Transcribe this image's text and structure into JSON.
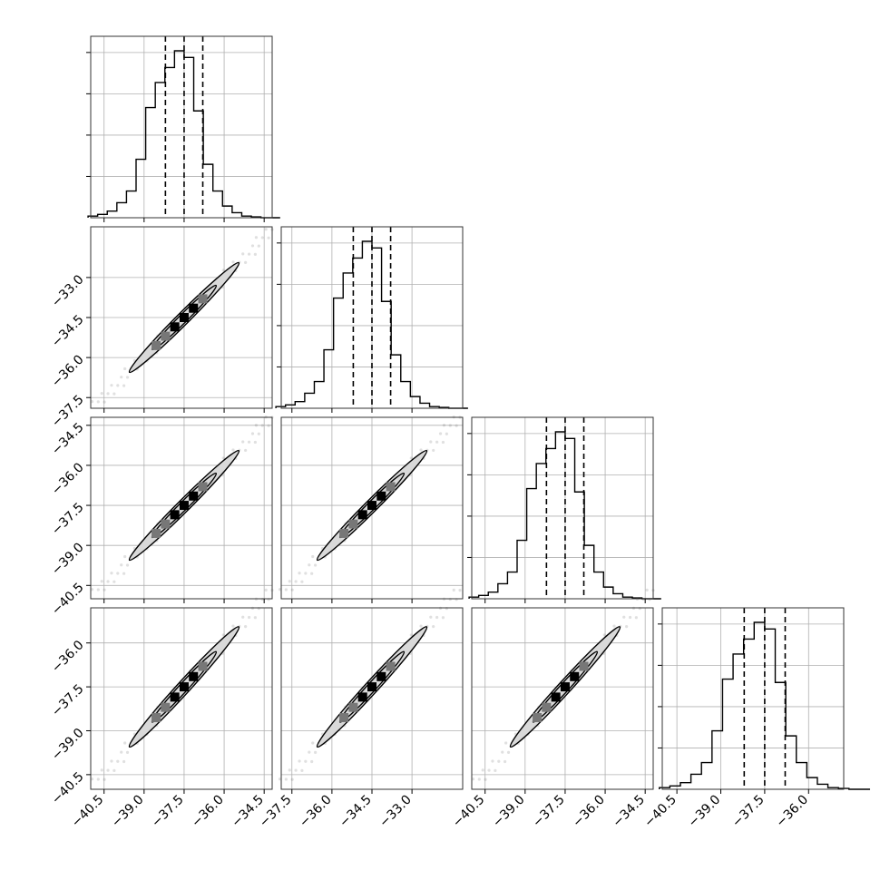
{
  "chart_data": {
    "type": "corner",
    "dimensions": 4,
    "params": [
      {
        "index": 0,
        "range": [
          -41.0,
          -34.2
        ],
        "ticks": [
          -40.5,
          -39.0,
          -37.5,
          -36.0,
          -34.5
        ],
        "tick_labels": [
          "−40.5",
          "−39.0",
          "−37.5",
          "−36.0",
          "−34.5"
        ],
        "median": -37.5,
        "q16": -38.2,
        "q84": -36.8,
        "hist_peak": 1.0
      },
      {
        "index": 1,
        "range": [
          -37.9,
          -31.1
        ],
        "ticks": [
          -37.5,
          -36.0,
          -34.5,
          -33.0
        ],
        "tick_labels": [
          "−37.5",
          "−36.0",
          "−34.5",
          "−33.0"
        ],
        "median": -34.5,
        "q16": -35.2,
        "q84": -33.8,
        "hist_peak": 1.0
      },
      {
        "index": 2,
        "range": [
          -41.0,
          -34.2
        ],
        "ticks": [
          -40.5,
          -39.0,
          -37.5,
          -36.0,
          -34.5
        ],
        "tick_labels": [
          "−40.5",
          "−39.0",
          "−37.5",
          "−36.0",
          "−34.5"
        ],
        "median": -37.5,
        "q16": -38.2,
        "q84": -36.8,
        "hist_peak": 1.0
      },
      {
        "index": 3,
        "range": [
          -41.0,
          -34.8
        ],
        "ticks": [
          -40.5,
          -39.0,
          -37.5,
          -36.0
        ],
        "tick_labels": [
          "−40.5",
          "−39.0",
          "−37.5",
          "−36.0"
        ],
        "median": -37.5,
        "q16": -38.2,
        "q84": -36.8,
        "hist_peak": 1.0
      }
    ],
    "histogram_bins": 20,
    "histogram_shape": [
      0.01,
      0.02,
      0.04,
      0.09,
      0.16,
      0.35,
      0.66,
      0.81,
      0.9,
      1.0,
      0.96,
      0.64,
      0.32,
      0.16,
      0.07,
      0.03,
      0.01,
      0.005,
      0.0,
      0.0
    ],
    "correlation": "near-linear positive, slope ≈ 1",
    "contour_levels": 2,
    "grid": true,
    "title": "",
    "xlabel": "",
    "ylabel": ""
  }
}
